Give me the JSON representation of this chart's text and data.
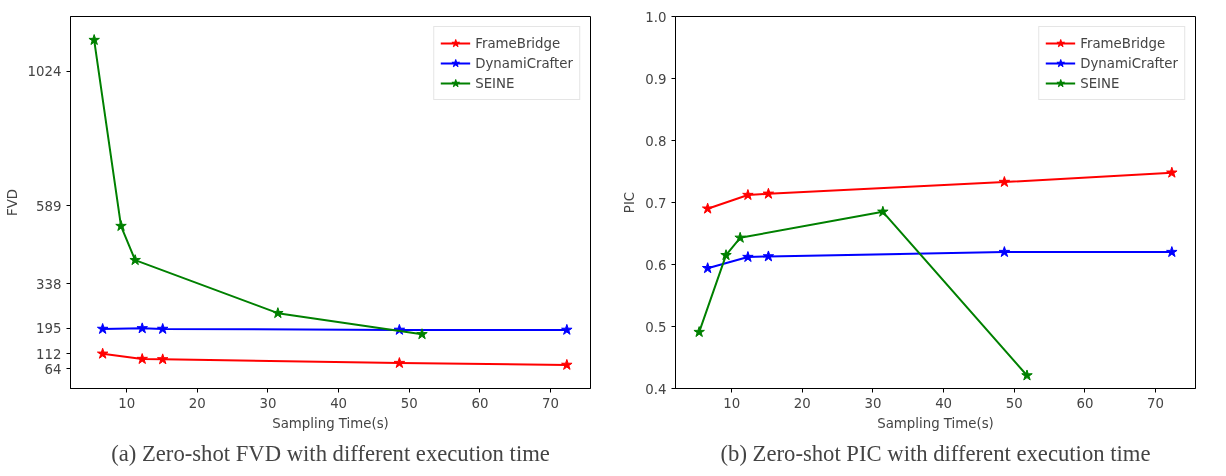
{
  "chart_data": [
    {
      "type": "line",
      "title": "(a) Zero-shot FVD with different execution time",
      "xlabel": "Sampling Time(s)",
      "ylabel": "FVD",
      "xlim": [
        2.05,
        75.65
      ],
      "ylim": [
        0,
        1200
      ],
      "xticks": [
        10,
        20,
        30,
        40,
        50,
        60,
        70
      ],
      "yticks": [
        64,
        112,
        195,
        338,
        589,
        1024
      ],
      "grid": false,
      "legend": "top right",
      "marker": "star",
      "line_style": "solid",
      "series": [
        {
          "name": "FrameBridge",
          "color": "#ff0000",
          "x": [
            6.6,
            12.2,
            15.1,
            48.6,
            72.3
          ],
          "values": [
            112,
            95,
            94,
            82,
            76
          ]
        },
        {
          "name": "DynamiCrafter",
          "color": "#0000ff",
          "x": [
            6.6,
            12.2,
            15.1,
            48.6,
            72.3
          ],
          "values": [
            192,
            194,
            192,
            189,
            189
          ]
        },
        {
          "name": "SEINE",
          "color": "#008000",
          "x": [
            5.4,
            9.2,
            11.2,
            31.4,
            51.8
          ],
          "values": [
            1124,
            524,
            414,
            243,
            175
          ]
        }
      ]
    },
    {
      "type": "line",
      "title": "(b) Zero-shot PIC with different execution time",
      "xlabel": "Sampling Time(s)",
      "ylabel": "PIC",
      "xlim": [
        2.05,
        75.65
      ],
      "ylim": [
        0.4,
        1.0
      ],
      "xticks": [
        10,
        20,
        30,
        40,
        50,
        60,
        70
      ],
      "yticks": [
        0.4,
        0.5,
        0.6,
        0.7,
        0.8,
        0.9,
        {
          "value": 1,
          "label": "1.0"
        }
      ],
      "grid": false,
      "legend": "top right",
      "marker": "star",
      "line_style": "solid",
      "series": [
        {
          "name": "FrameBridge",
          "color": "#ff0000",
          "x": [
            6.6,
            12.3,
            15.2,
            48.6,
            72.3
          ],
          "values": [
            0.69,
            0.712,
            0.714,
            0.733,
            0.748
          ]
        },
        {
          "name": "DynamiCrafter",
          "color": "#0000ff",
          "x": [
            6.6,
            12.3,
            15.2,
            48.6,
            72.3
          ],
          "values": [
            0.594,
            0.612,
            0.613,
            0.62,
            0.62
          ]
        },
        {
          "name": "SEINE",
          "color": "#008000",
          "x": [
            5.4,
            9.2,
            11.2,
            31.4,
            51.8
          ],
          "values": [
            0.491,
            0.615,
            0.643,
            0.685,
            0.421
          ]
        }
      ]
    }
  ]
}
